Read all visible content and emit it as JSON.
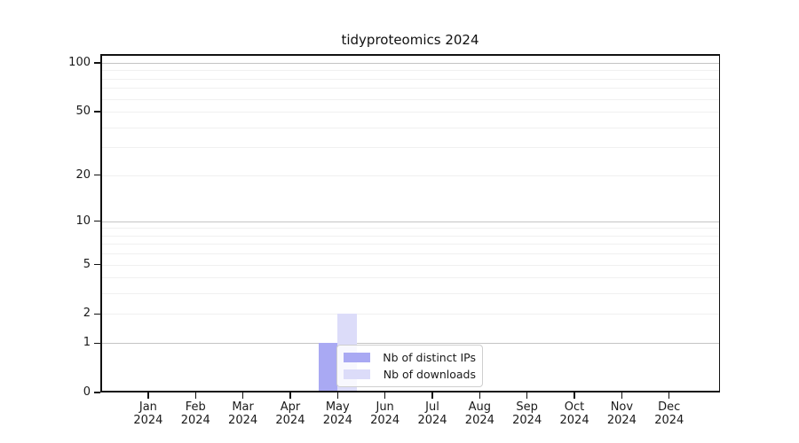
{
  "chart_data": {
    "type": "bar",
    "title": "tidyproteomics 2024",
    "x_categories": [
      {
        "month": "Jan",
        "year": "2024"
      },
      {
        "month": "Feb",
        "year": "2024"
      },
      {
        "month": "Mar",
        "year": "2024"
      },
      {
        "month": "Apr",
        "year": "2024"
      },
      {
        "month": "May",
        "year": "2024"
      },
      {
        "month": "Jun",
        "year": "2024"
      },
      {
        "month": "Jul",
        "year": "2024"
      },
      {
        "month": "Aug",
        "year": "2024"
      },
      {
        "month": "Sep",
        "year": "2024"
      },
      {
        "month": "Oct",
        "year": "2024"
      },
      {
        "month": "Nov",
        "year": "2024"
      },
      {
        "month": "Dec",
        "year": "2024"
      }
    ],
    "series": [
      {
        "name": "Nb of distinct IPs",
        "color": "#a9a9f3",
        "values": [
          0,
          0,
          0,
          0,
          1,
          0,
          0,
          0,
          0,
          0,
          0,
          0
        ]
      },
      {
        "name": "Nb of downloads",
        "color": "#dcdcf9",
        "values": [
          0,
          0,
          0,
          0,
          2,
          0,
          0,
          0,
          0,
          0,
          0,
          0
        ]
      }
    ],
    "y_axis": {
      "scale": "log1p",
      "ticks": [
        {
          "value": 0,
          "label": "0"
        },
        {
          "value": 1,
          "label": "1"
        },
        {
          "value": 2,
          "label": "2"
        },
        {
          "value": 5,
          "label": "5"
        },
        {
          "value": 10,
          "label": "10"
        },
        {
          "value": 20,
          "label": "20"
        },
        {
          "value": 50,
          "label": "50"
        },
        {
          "value": 100,
          "label": "100"
        }
      ],
      "major_gridlines": [
        1,
        10,
        100
      ],
      "minor_gridlines": [
        2,
        3,
        4,
        5,
        6,
        7,
        8,
        9,
        20,
        30,
        40,
        50,
        60,
        70,
        80,
        90
      ]
    },
    "ylim": [
      0,
      113
    ],
    "grid": true,
    "legend": {
      "position": "lower center",
      "entries": [
        "Nb of distinct IPs",
        "Nb of downloads"
      ]
    }
  },
  "colors": {
    "major_gridline": "#c4c4c4",
    "minor_gridline": "#f0f0f0",
    "spine": "#111111",
    "text": "#1a1a1a",
    "legend_border": "#cfcfcf"
  }
}
